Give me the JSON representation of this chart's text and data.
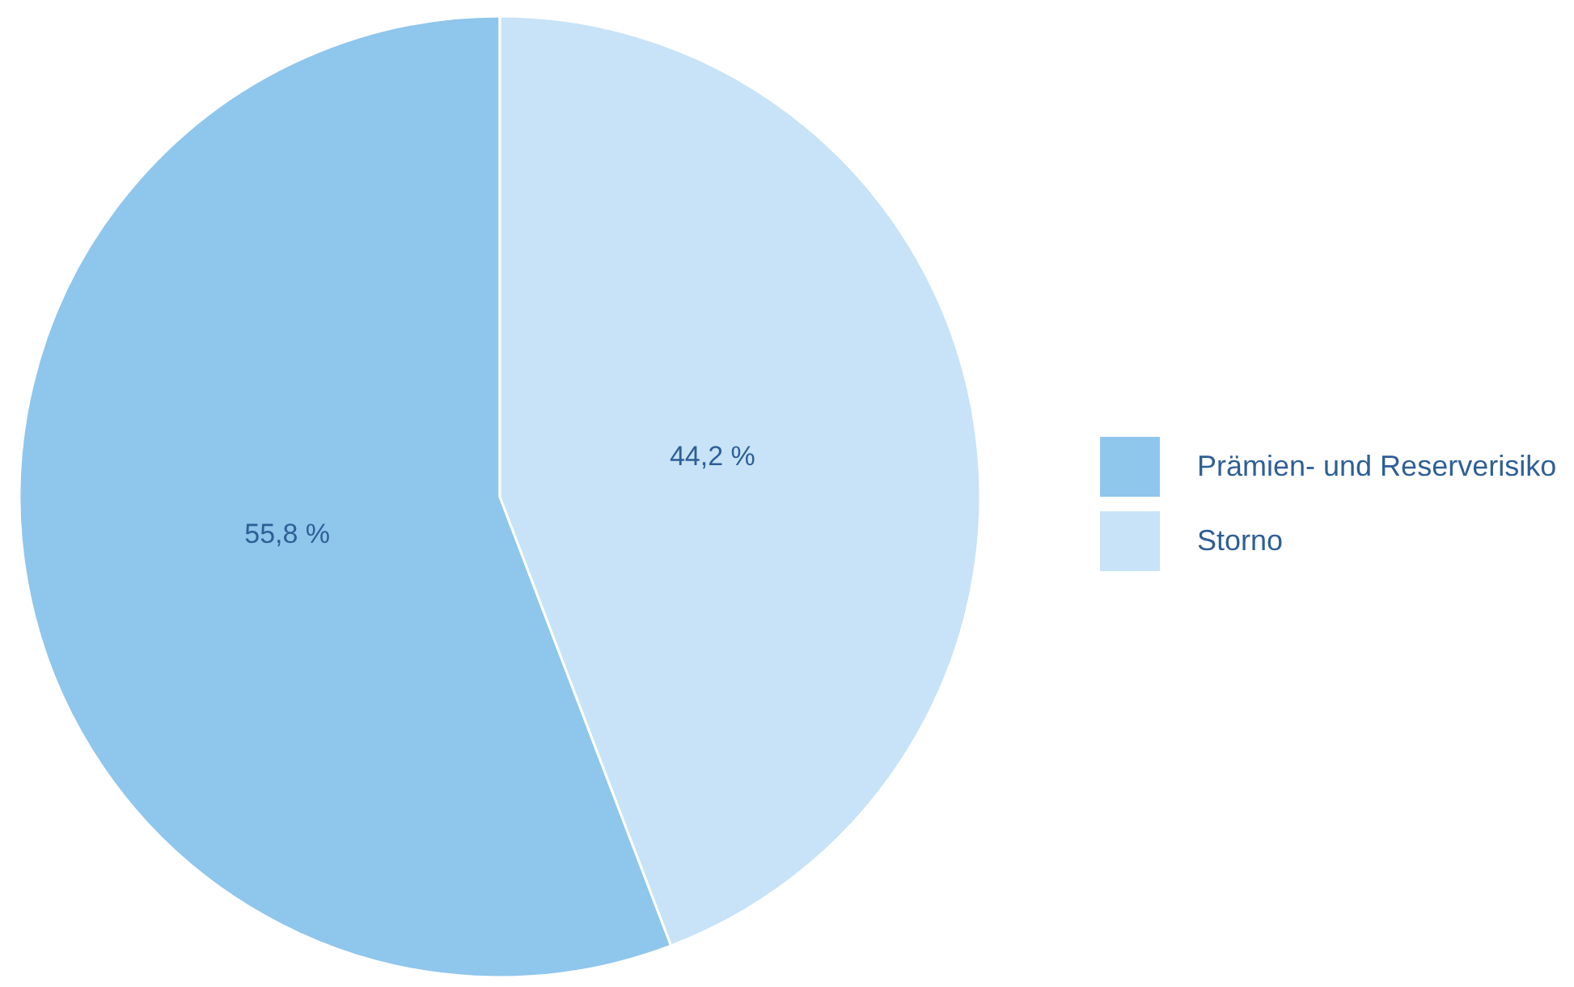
{
  "chart_data": {
    "type": "pie",
    "categories": [
      "Prämien- und Reserverisiko",
      "Storno"
    ],
    "values": [
      55.8,
      44.2
    ],
    "colors": [
      "#8fc6ec",
      "#c8e3f7"
    ],
    "value_labels": [
      "55,8 %",
      "44,2 %"
    ],
    "legend": "right"
  }
}
